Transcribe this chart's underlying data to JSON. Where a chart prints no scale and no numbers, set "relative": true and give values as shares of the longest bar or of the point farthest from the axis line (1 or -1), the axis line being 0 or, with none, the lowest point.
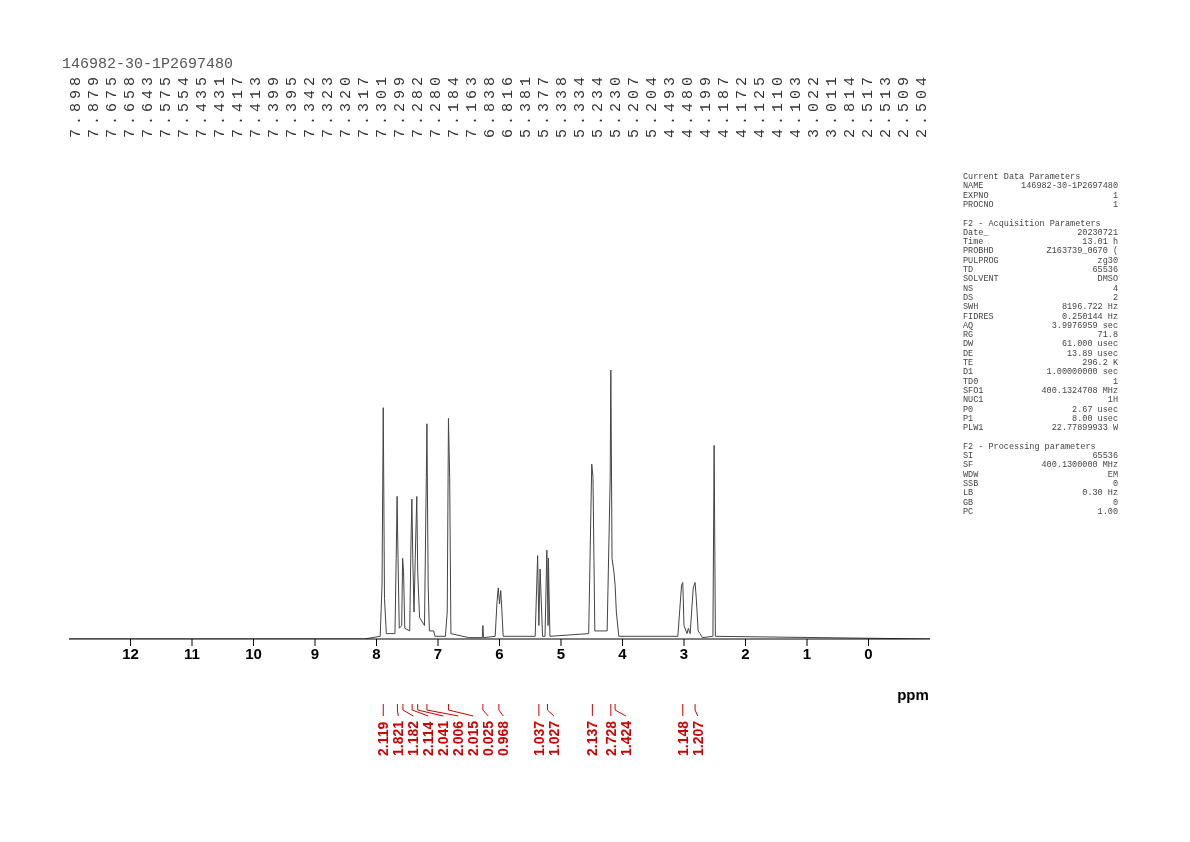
{
  "chart_data": {
    "type": "line",
    "title": "146982-30-1P2697480",
    "xlabel": "ppm",
    "relative": true,
    "color": "#444444",
    "xlim": [
      13,
      -1
    ],
    "xticks": [
      12,
      11,
      10,
      9,
      8,
      7,
      6,
      5,
      4,
      3,
      2,
      1,
      0
    ],
    "x": [
      13,
      8.2,
      7.94,
      7.91,
      7.89,
      7.87,
      7.84,
      7.7,
      7.68,
      7.665,
      7.65,
      7.63,
      7.59,
      7.575,
      7.56,
      7.54,
      7.46,
      7.44,
      7.425,
      7.41,
      7.39,
      7.37,
      7.345,
      7.33,
      7.3,
      7.22,
      7.19,
      7.18,
      7.16,
      7.14,
      7.07,
      7.05,
      6.88,
      6.85,
      6.83,
      6.81,
      6.79,
      6.5,
      6.28,
      6.27,
      6.26,
      6.07,
      6.04,
      6.02,
      6,
      5.98,
      5.96,
      5.94,
      5.42,
      5.38,
      5.36,
      5.34,
      5.3,
      5.26,
      5.23,
      5.21,
      5.205,
      5.18,
      4.55,
      4.5,
      4.48,
      4.45,
      4.25,
      4.2,
      4.19,
      4.17,
      4.14,
      4.12,
      4.1,
      4.06,
      3.1,
      3.04,
      3.02,
      3,
      2.95,
      2.93,
      2.9,
      2.85,
      2.82,
      2.8,
      2.77,
      2.74,
      2.7,
      2.53,
      2.51,
      2.49,
      -1
    ],
    "values": [
      0,
      0,
      0.01,
      0.2,
      0.86,
      0.15,
      0.02,
      0.02,
      0.3,
      0.53,
      0.3,
      0.04,
      0.05,
      0.3,
      0.25,
      0.04,
      0.03,
      0.35,
      0.52,
      0.3,
      0.1,
      0.3,
      0.53,
      0.25,
      0.08,
      0.05,
      0.6,
      0.8,
      0.2,
      0.03,
      0.03,
      0.01,
      0.01,
      0.1,
      0.82,
      0.6,
      0.02,
      0.005,
      0.005,
      0.05,
      0.005,
      0.01,
      0.14,
      0.19,
      0.13,
      0.18,
      0.1,
      0.01,
      0.01,
      0.31,
      0.05,
      0.26,
      0.01,
      0.01,
      0.33,
      0.05,
      0.3,
      0.01,
      0.02,
      0.65,
      0.6,
      0.03,
      0.03,
      0.6,
      1,
      0.3,
      0.25,
      0.2,
      0.1,
      0.01,
      0.01,
      0.2,
      0.21,
      0.05,
      0.02,
      0.04,
      0.02,
      0.19,
      0.21,
      0.15,
      0.03,
      0.02,
      0.005,
      0.01,
      0.72,
      0.01,
      0
    ],
    "annotations": [
      "7.898",
      "7.879",
      "7.675",
      "7.658",
      "7.643",
      "7.575",
      "7.554",
      "7.435",
      "7.431",
      "7.417",
      "7.413",
      "7.399",
      "7.395",
      "7.342",
      "7.323",
      "7.320",
      "7.317",
      "7.301",
      "7.299",
      "7.282",
      "7.280",
      "7.184",
      "7.163",
      "6.838",
      "6.816",
      "5.381",
      "5.377",
      "5.338",
      "5.334",
      "5.234",
      "5.230",
      "5.207",
      "5.204",
      "4.493",
      "4.480",
      "4.199",
      "4.187",
      "4.172",
      "4.125",
      "4.110",
      "4.103",
      "3.022",
      "3.011",
      "2.814",
      "2.517",
      "2.513",
      "2.509",
      "2.504",
      {
        "text": "2.119",
        "x": 7.89
      },
      {
        "text": "1.821",
        "x": 7.66
      },
      {
        "text": "1.182",
        "x": 7.57
      },
      {
        "text": "2.114",
        "x": 7.42
      },
      {
        "text": "2.041",
        "x": 7.33
      },
      {
        "text": "2.006",
        "x": 7.18
      },
      {
        "text": "2.015",
        "x": 6.83
      },
      {
        "text": "0.025",
        "x": 6.27
      },
      {
        "text": "0.968",
        "x": 6.01
      },
      {
        "text": "1.037",
        "x": 5.36
      },
      {
        "text": "1.027",
        "x": 5.22
      },
      {
        "text": "2.137",
        "x": 4.49
      },
      {
        "text": "2.728",
        "x": 4.19
      },
      {
        "text": "1.424",
        "x": 4.12
      },
      {
        "text": "1.148",
        "x": 3.02
      },
      {
        "text": "1.207",
        "x": 2.82
      },
      "Current Data Parameters\nNAME\t146982-30-1P2697480\nEXPNO\t1\nPROCNO\t1",
      "F2 - Acquisition Parameters\nDate_\t20230721\nTime\t13.01 h\nPROBHD\tZ163739_0670 (\nPULPROG\tzg30\nTD\t65536\nSOLVENT\tDMSO\nNS\t4\nDS\t2\nSWH\t8196.722 Hz\nFIDRES\t0.250144 Hz\nAQ\t3.9976959 sec\nRG\t71.8\nDW\t61.000 usec\nDE\t13.89 usec\nTE\t296.2 K\nD1\t1.00000000 sec\nTD0\t1\nSFO1\t400.1324708 MHz\nNUC1\t1H\nP0\t2.67 usec\nP1\t8.00 usec\nPLW1\t22.77899933 W",
      "F2 - Processing parameters\nSI\t65536\nSF\t400.1300000 MHz\nWDW\tEM\nSSB\t0\nLB\t0.30 Hz\nGB\t0\nPC\t1.00"
    ]
  }
}
